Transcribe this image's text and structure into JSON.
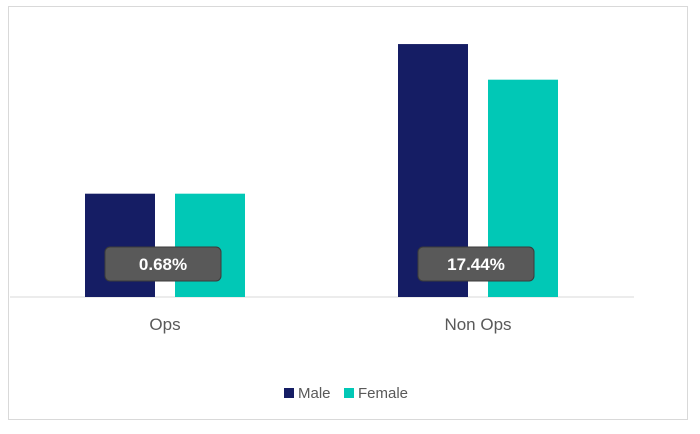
{
  "chart_data": {
    "type": "bar",
    "categories": [
      "Ops",
      "Non Ops"
    ],
    "series": [
      {
        "name": "Male",
        "color": "#151d64",
        "values": [
          29,
          71
        ]
      },
      {
        "name": "Female",
        "color": "#01c8b6",
        "values": [
          29,
          61
        ]
      }
    ],
    "ylim": [
      0,
      80
    ],
    "grid": false,
    "legend": "bottom-center",
    "annotations": [
      "0.68%",
      "17.44%"
    ]
  }
}
